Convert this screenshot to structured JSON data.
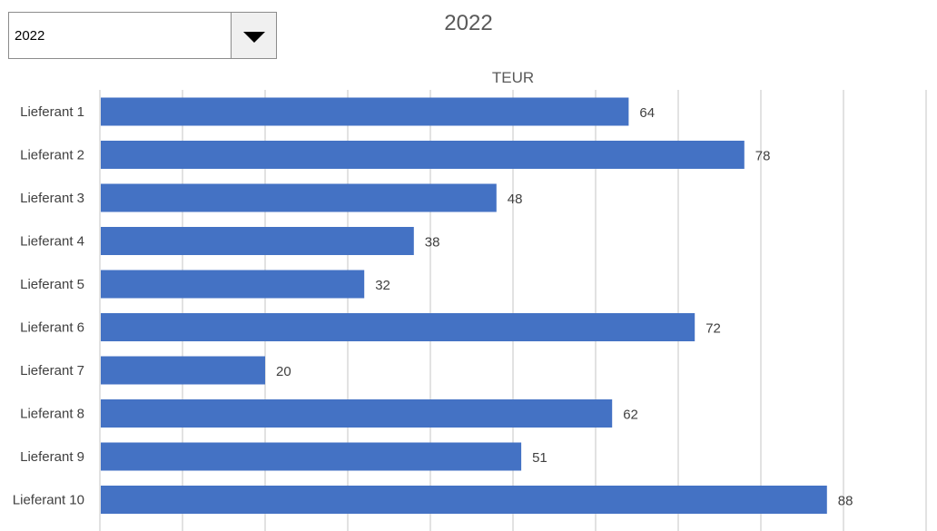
{
  "year_select": {
    "value": "2022",
    "dropdown_icon": "triangle-down-icon"
  },
  "chart_data": {
    "type": "bar",
    "orientation": "horizontal",
    "title": "2022",
    "axis_title": "TEUR",
    "categories": [
      "Lieferant 1",
      "Lieferant 2",
      "Lieferant 3",
      "Lieferant 4",
      "Lieferant 5",
      "Lieferant 6",
      "Lieferant 7",
      "Lieferant 8",
      "Lieferant 9",
      "Lieferant 10"
    ],
    "values": [
      64,
      78,
      48,
      38,
      32,
      72,
      20,
      62,
      51,
      88
    ],
    "xlim": [
      0,
      100
    ],
    "gridlines": true,
    "gridline_step": 10,
    "bar_color": "#4472C4",
    "legend": "none"
  }
}
